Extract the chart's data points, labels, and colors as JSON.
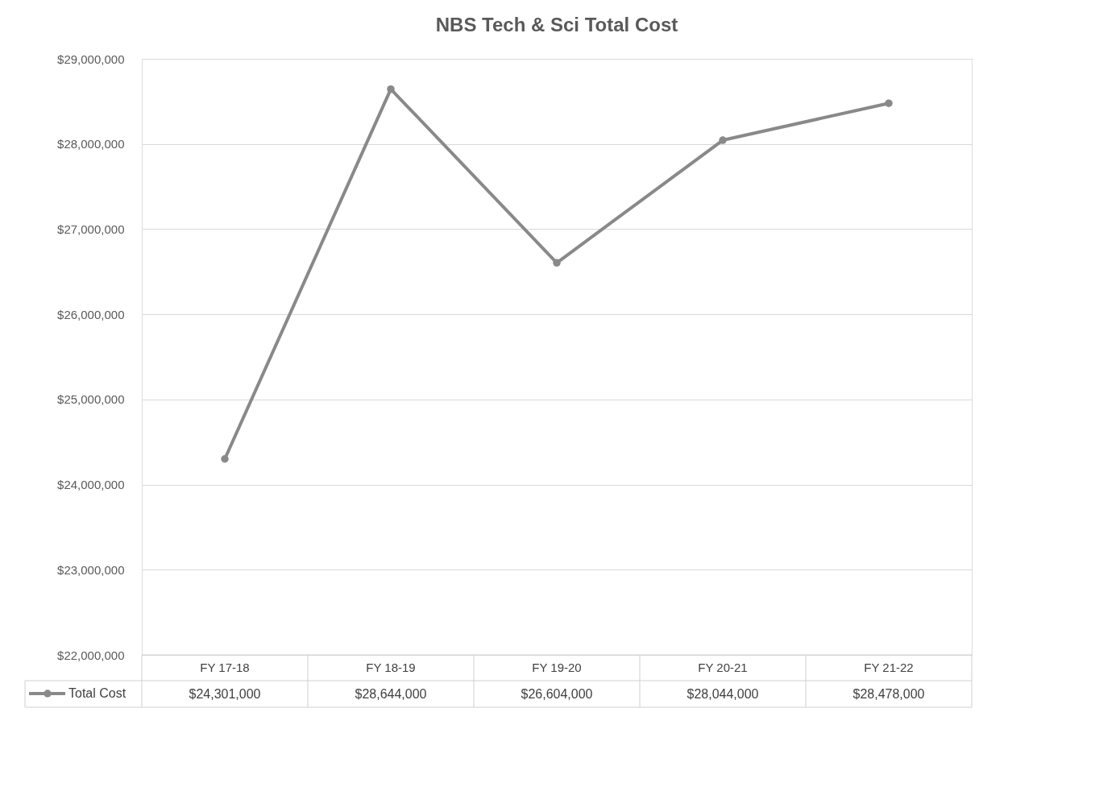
{
  "chart_data": {
    "type": "line",
    "title": "NBS Tech & Sci Total Cost",
    "categories": [
      "FY 17-18",
      "FY 18-19",
      "FY 19-20",
      "FY 20-21",
      "FY 21-22"
    ],
    "series": [
      {
        "name": "Total Cost",
        "color": "#898989",
        "values": [
          24301000,
          28644000,
          26604000,
          28044000,
          28478000
        ],
        "value_labels": [
          "$24,301,000",
          "$28,644,000",
          "$26,604,000",
          "$28,044,000",
          "$28,478,000"
        ]
      }
    ],
    "ylim": [
      22000000,
      29000000
    ],
    "yticks": [
      {
        "value": 22000000,
        "label": "$22,000,000"
      },
      {
        "value": 23000000,
        "label": "$23,000,000"
      },
      {
        "value": 24000000,
        "label": "$24,000,000"
      },
      {
        "value": 25000000,
        "label": "$25,000,000"
      },
      {
        "value": 26000000,
        "label": "$26,000,000"
      },
      {
        "value": 27000000,
        "label": "$27,000,000"
      },
      {
        "value": 28000000,
        "label": "$28,000,000"
      },
      {
        "value": 29000000,
        "label": "$29,000,000"
      }
    ],
    "grid": "y",
    "legend": "bottom",
    "marker": "circle",
    "line_style": "solid"
  }
}
